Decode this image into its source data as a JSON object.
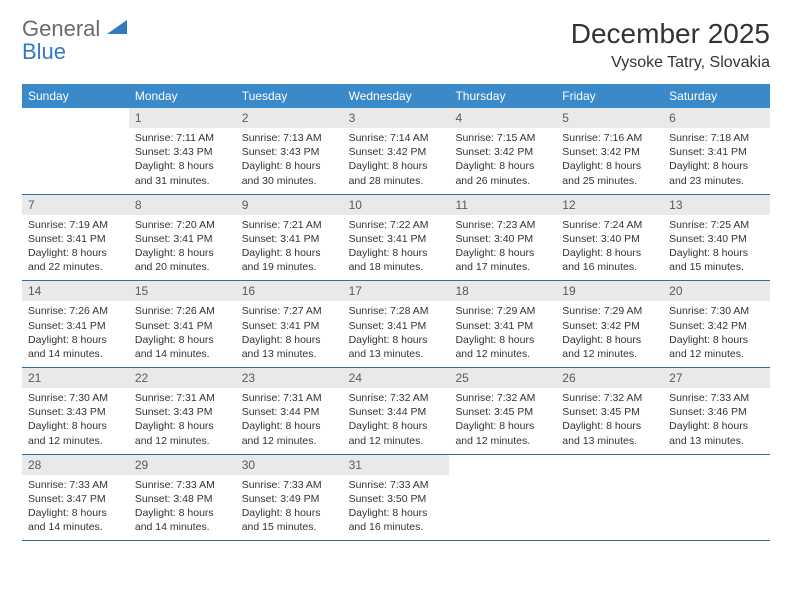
{
  "brand": {
    "word1": "General",
    "word2": "Blue"
  },
  "title": "December 2025",
  "location": "Vysoke Tatry, Slovakia",
  "colors": {
    "header_bg": "#3a89c9",
    "header_text": "#ffffff",
    "date_bar_bg": "#e8e9ea",
    "date_bar_text": "#5a5a5a",
    "body_text": "#333333",
    "border": "#2f6ea0",
    "logo_gray": "#6a6a6a",
    "logo_blue": "#2f7ac0"
  },
  "day_names": [
    "Sunday",
    "Monday",
    "Tuesday",
    "Wednesday",
    "Thursday",
    "Friday",
    "Saturday"
  ],
  "weeks": [
    [
      {
        "date": "",
        "sunrise": "",
        "sunset": "",
        "daylight": ""
      },
      {
        "date": "1",
        "sunrise": "Sunrise: 7:11 AM",
        "sunset": "Sunset: 3:43 PM",
        "daylight": "Daylight: 8 hours and 31 minutes."
      },
      {
        "date": "2",
        "sunrise": "Sunrise: 7:13 AM",
        "sunset": "Sunset: 3:43 PM",
        "daylight": "Daylight: 8 hours and 30 minutes."
      },
      {
        "date": "3",
        "sunrise": "Sunrise: 7:14 AM",
        "sunset": "Sunset: 3:42 PM",
        "daylight": "Daylight: 8 hours and 28 minutes."
      },
      {
        "date": "4",
        "sunrise": "Sunrise: 7:15 AM",
        "sunset": "Sunset: 3:42 PM",
        "daylight": "Daylight: 8 hours and 26 minutes."
      },
      {
        "date": "5",
        "sunrise": "Sunrise: 7:16 AM",
        "sunset": "Sunset: 3:42 PM",
        "daylight": "Daylight: 8 hours and 25 minutes."
      },
      {
        "date": "6",
        "sunrise": "Sunrise: 7:18 AM",
        "sunset": "Sunset: 3:41 PM",
        "daylight": "Daylight: 8 hours and 23 minutes."
      }
    ],
    [
      {
        "date": "7",
        "sunrise": "Sunrise: 7:19 AM",
        "sunset": "Sunset: 3:41 PM",
        "daylight": "Daylight: 8 hours and 22 minutes."
      },
      {
        "date": "8",
        "sunrise": "Sunrise: 7:20 AM",
        "sunset": "Sunset: 3:41 PM",
        "daylight": "Daylight: 8 hours and 20 minutes."
      },
      {
        "date": "9",
        "sunrise": "Sunrise: 7:21 AM",
        "sunset": "Sunset: 3:41 PM",
        "daylight": "Daylight: 8 hours and 19 minutes."
      },
      {
        "date": "10",
        "sunrise": "Sunrise: 7:22 AM",
        "sunset": "Sunset: 3:41 PM",
        "daylight": "Daylight: 8 hours and 18 minutes."
      },
      {
        "date": "11",
        "sunrise": "Sunrise: 7:23 AM",
        "sunset": "Sunset: 3:40 PM",
        "daylight": "Daylight: 8 hours and 17 minutes."
      },
      {
        "date": "12",
        "sunrise": "Sunrise: 7:24 AM",
        "sunset": "Sunset: 3:40 PM",
        "daylight": "Daylight: 8 hours and 16 minutes."
      },
      {
        "date": "13",
        "sunrise": "Sunrise: 7:25 AM",
        "sunset": "Sunset: 3:40 PM",
        "daylight": "Daylight: 8 hours and 15 minutes."
      }
    ],
    [
      {
        "date": "14",
        "sunrise": "Sunrise: 7:26 AM",
        "sunset": "Sunset: 3:41 PM",
        "daylight": "Daylight: 8 hours and 14 minutes."
      },
      {
        "date": "15",
        "sunrise": "Sunrise: 7:26 AM",
        "sunset": "Sunset: 3:41 PM",
        "daylight": "Daylight: 8 hours and 14 minutes."
      },
      {
        "date": "16",
        "sunrise": "Sunrise: 7:27 AM",
        "sunset": "Sunset: 3:41 PM",
        "daylight": "Daylight: 8 hours and 13 minutes."
      },
      {
        "date": "17",
        "sunrise": "Sunrise: 7:28 AM",
        "sunset": "Sunset: 3:41 PM",
        "daylight": "Daylight: 8 hours and 13 minutes."
      },
      {
        "date": "18",
        "sunrise": "Sunrise: 7:29 AM",
        "sunset": "Sunset: 3:41 PM",
        "daylight": "Daylight: 8 hours and 12 minutes."
      },
      {
        "date": "19",
        "sunrise": "Sunrise: 7:29 AM",
        "sunset": "Sunset: 3:42 PM",
        "daylight": "Daylight: 8 hours and 12 minutes."
      },
      {
        "date": "20",
        "sunrise": "Sunrise: 7:30 AM",
        "sunset": "Sunset: 3:42 PM",
        "daylight": "Daylight: 8 hours and 12 minutes."
      }
    ],
    [
      {
        "date": "21",
        "sunrise": "Sunrise: 7:30 AM",
        "sunset": "Sunset: 3:43 PM",
        "daylight": "Daylight: 8 hours and 12 minutes."
      },
      {
        "date": "22",
        "sunrise": "Sunrise: 7:31 AM",
        "sunset": "Sunset: 3:43 PM",
        "daylight": "Daylight: 8 hours and 12 minutes."
      },
      {
        "date": "23",
        "sunrise": "Sunrise: 7:31 AM",
        "sunset": "Sunset: 3:44 PM",
        "daylight": "Daylight: 8 hours and 12 minutes."
      },
      {
        "date": "24",
        "sunrise": "Sunrise: 7:32 AM",
        "sunset": "Sunset: 3:44 PM",
        "daylight": "Daylight: 8 hours and 12 minutes."
      },
      {
        "date": "25",
        "sunrise": "Sunrise: 7:32 AM",
        "sunset": "Sunset: 3:45 PM",
        "daylight": "Daylight: 8 hours and 12 minutes."
      },
      {
        "date": "26",
        "sunrise": "Sunrise: 7:32 AM",
        "sunset": "Sunset: 3:45 PM",
        "daylight": "Daylight: 8 hours and 13 minutes."
      },
      {
        "date": "27",
        "sunrise": "Sunrise: 7:33 AM",
        "sunset": "Sunset: 3:46 PM",
        "daylight": "Daylight: 8 hours and 13 minutes."
      }
    ],
    [
      {
        "date": "28",
        "sunrise": "Sunrise: 7:33 AM",
        "sunset": "Sunset: 3:47 PM",
        "daylight": "Daylight: 8 hours and 14 minutes."
      },
      {
        "date": "29",
        "sunrise": "Sunrise: 7:33 AM",
        "sunset": "Sunset: 3:48 PM",
        "daylight": "Daylight: 8 hours and 14 minutes."
      },
      {
        "date": "30",
        "sunrise": "Sunrise: 7:33 AM",
        "sunset": "Sunset: 3:49 PM",
        "daylight": "Daylight: 8 hours and 15 minutes."
      },
      {
        "date": "31",
        "sunrise": "Sunrise: 7:33 AM",
        "sunset": "Sunset: 3:50 PM",
        "daylight": "Daylight: 8 hours and 16 minutes."
      },
      {
        "date": "",
        "sunrise": "",
        "sunset": "",
        "daylight": ""
      },
      {
        "date": "",
        "sunrise": "",
        "sunset": "",
        "daylight": ""
      },
      {
        "date": "",
        "sunrise": "",
        "sunset": "",
        "daylight": ""
      }
    ]
  ]
}
